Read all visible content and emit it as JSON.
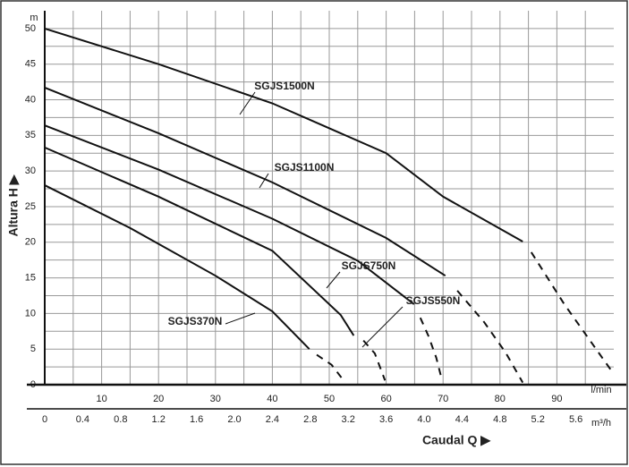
{
  "chart_data": {
    "type": "line",
    "y_label": "Altura  H ▶",
    "x_label": "Caudal  Q ▶",
    "y_unit": "m",
    "x_unit": "l/min",
    "x2_unit": "m³/h",
    "xlim": [
      0,
      100
    ],
    "ylim": [
      0,
      52.5
    ],
    "xticks": [
      10,
      20,
      30,
      40,
      50,
      60,
      70,
      80,
      90
    ],
    "yticks": [
      0,
      5,
      10,
      15,
      20,
      25,
      30,
      35,
      40,
      45,
      50
    ],
    "x2lim": [
      0,
      6
    ],
    "x2ticks": [
      0,
      0.4,
      0.8,
      1.2,
      1.6,
      {
        "value": 2,
        "label": "2.0"
      },
      2.4,
      2.8,
      3.2,
      3.6,
      {
        "value": 4,
        "label": "4.0"
      },
      4.4,
      4.8,
      5.2,
      5.6
    ],
    "grid": true,
    "series": [
      {
        "name": "SGJS1500N",
        "color": "#111",
        "x": [
          0,
          20,
          40,
          60,
          70,
          84
        ],
        "values": [
          50,
          45,
          39.5,
          32.5,
          26.4,
          20.1
        ],
        "dash_x": [
          85.5,
          91.3,
          96,
          100
        ],
        "dash_values": [
          18.6,
          11.3,
          6,
          1.5
        ]
      },
      {
        "name": "SGJS1100N",
        "color": "#111",
        "x": [
          0,
          20,
          40,
          60,
          70.4
        ],
        "values": [
          41.7,
          35.3,
          28.4,
          20.6,
          15.3
        ],
        "dash_x": [
          72.5,
          77.2,
          81,
          84
        ],
        "dash_values": [
          13.2,
          8.8,
          4.5,
          0.3
        ]
      },
      {
        "name": "SGJS750N",
        "color": "#111",
        "x": [
          0,
          20,
          40,
          55,
          64.9
        ],
        "values": [
          36.4,
          30.2,
          23.3,
          17.4,
          11.3
        ],
        "dash_x": [
          66,
          67.4,
          68.8,
          69.6
        ],
        "dash_values": [
          9.4,
          6.9,
          3.8,
          1.3
        ]
      },
      {
        "name": "SGJS550N",
        "color": "#111",
        "x": [
          0,
          20,
          40,
          52,
          54.3
        ],
        "values": [
          33.3,
          26.4,
          18.8,
          9.8,
          6.9
        ],
        "dash_x": [
          56,
          58,
          59.8
        ],
        "dash_values": [
          6.2,
          4.4,
          0.6
        ]
      },
      {
        "name": "SGJS370N",
        "color": "#111",
        "x": [
          0,
          15,
          30,
          40,
          46.5
        ],
        "values": [
          28,
          22,
          15.3,
          10.3,
          5
        ],
        "dash_x": [
          47.8,
          50.4,
          52.8
        ],
        "dash_values": [
          4.2,
          2.8,
          0.3
        ]
      }
    ]
  }
}
